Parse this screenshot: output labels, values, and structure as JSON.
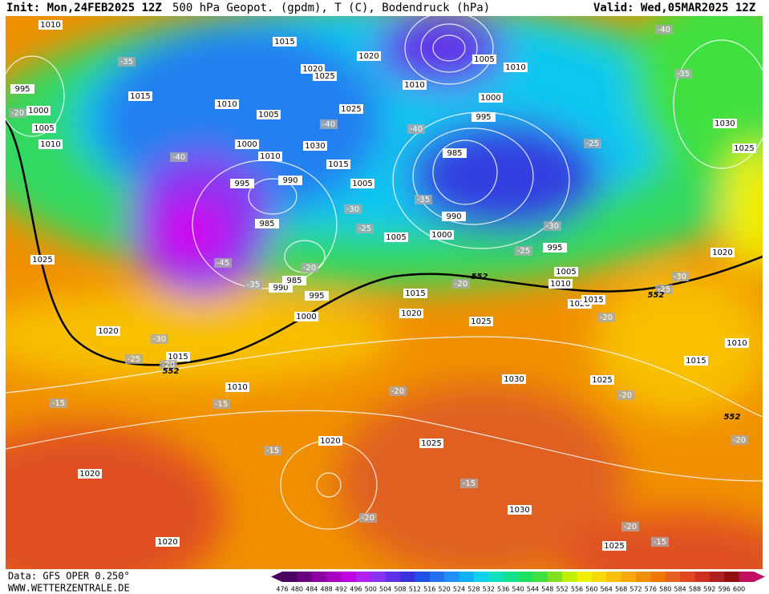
{
  "header": {
    "init": "Init: Mon,24FEB2025 12Z",
    "title": "500 hPa Geopot. (gpdm), T (C), Bodendruck (hPa)",
    "valid": "Valid: Wed,05MAR2025 12Z"
  },
  "footer": {
    "data": "Data: GFS OPER 0.250°",
    "site": "WWW.WETTERZENTRALE.DE"
  },
  "colorbar": {
    "labels": [
      476,
      480,
      484,
      488,
      492,
      496,
      500,
      504,
      508,
      512,
      516,
      520,
      524,
      528,
      532,
      536,
      540,
      544,
      548,
      552,
      556,
      560,
      564,
      568,
      572,
      576,
      580,
      584,
      588,
      592,
      596,
      600
    ],
    "colors": [
      "#4a0060",
      "#6a0080",
      "#8a00a0",
      "#a800c0",
      "#c000e0",
      "#b020f0",
      "#8a30f0",
      "#6030e8",
      "#3a30e0",
      "#2050e8",
      "#2070f0",
      "#2090f8",
      "#10b0f8",
      "#10d0f0",
      "#10e0c0",
      "#10e090",
      "#20e060",
      "#40e040",
      "#80e020",
      "#c0f000",
      "#f0f000",
      "#f8d800",
      "#f8c000",
      "#f8a800",
      "#f09000",
      "#f07800",
      "#e86020",
      "#e04820",
      "#d03020",
      "#b02020",
      "#901010",
      "#c01060"
    ]
  },
  "isobar_labels": [
    1010,
    995,
    1000,
    1005,
    1010,
    1015,
    1015,
    1020,
    1025,
    1010,
    1005,
    1000,
    1010,
    1030,
    1025,
    1015,
    1005,
    990,
    995,
    985,
    990,
    985,
    995,
    1000,
    1020,
    1010,
    1005,
    1010,
    1000,
    995,
    985,
    990,
    1000,
    1005,
    995,
    1005,
    1010,
    1015,
    1020,
    1025,
    1020,
    1015,
    1030,
    1025,
    1020,
    1010,
    1015,
    1025,
    1020,
    1015,
    1010,
    1030,
    1025,
    1020,
    1025,
    1030,
    1020,
    1020,
    1025
  ],
  "temperature_labels": [
    -35,
    -20,
    -40,
    -35,
    -40,
    -40,
    -40,
    -25,
    -35,
    -30,
    -25,
    -45,
    -35,
    -20,
    -30,
    -25,
    -20,
    -25,
    -30,
    -20,
    -30,
    -25,
    -20,
    -15,
    -15,
    -20,
    -20,
    -20,
    -15,
    -15,
    -20,
    -20,
    -15
  ],
  "geopotential_labels": [
    552,
    552,
    552,
    552
  ]
}
